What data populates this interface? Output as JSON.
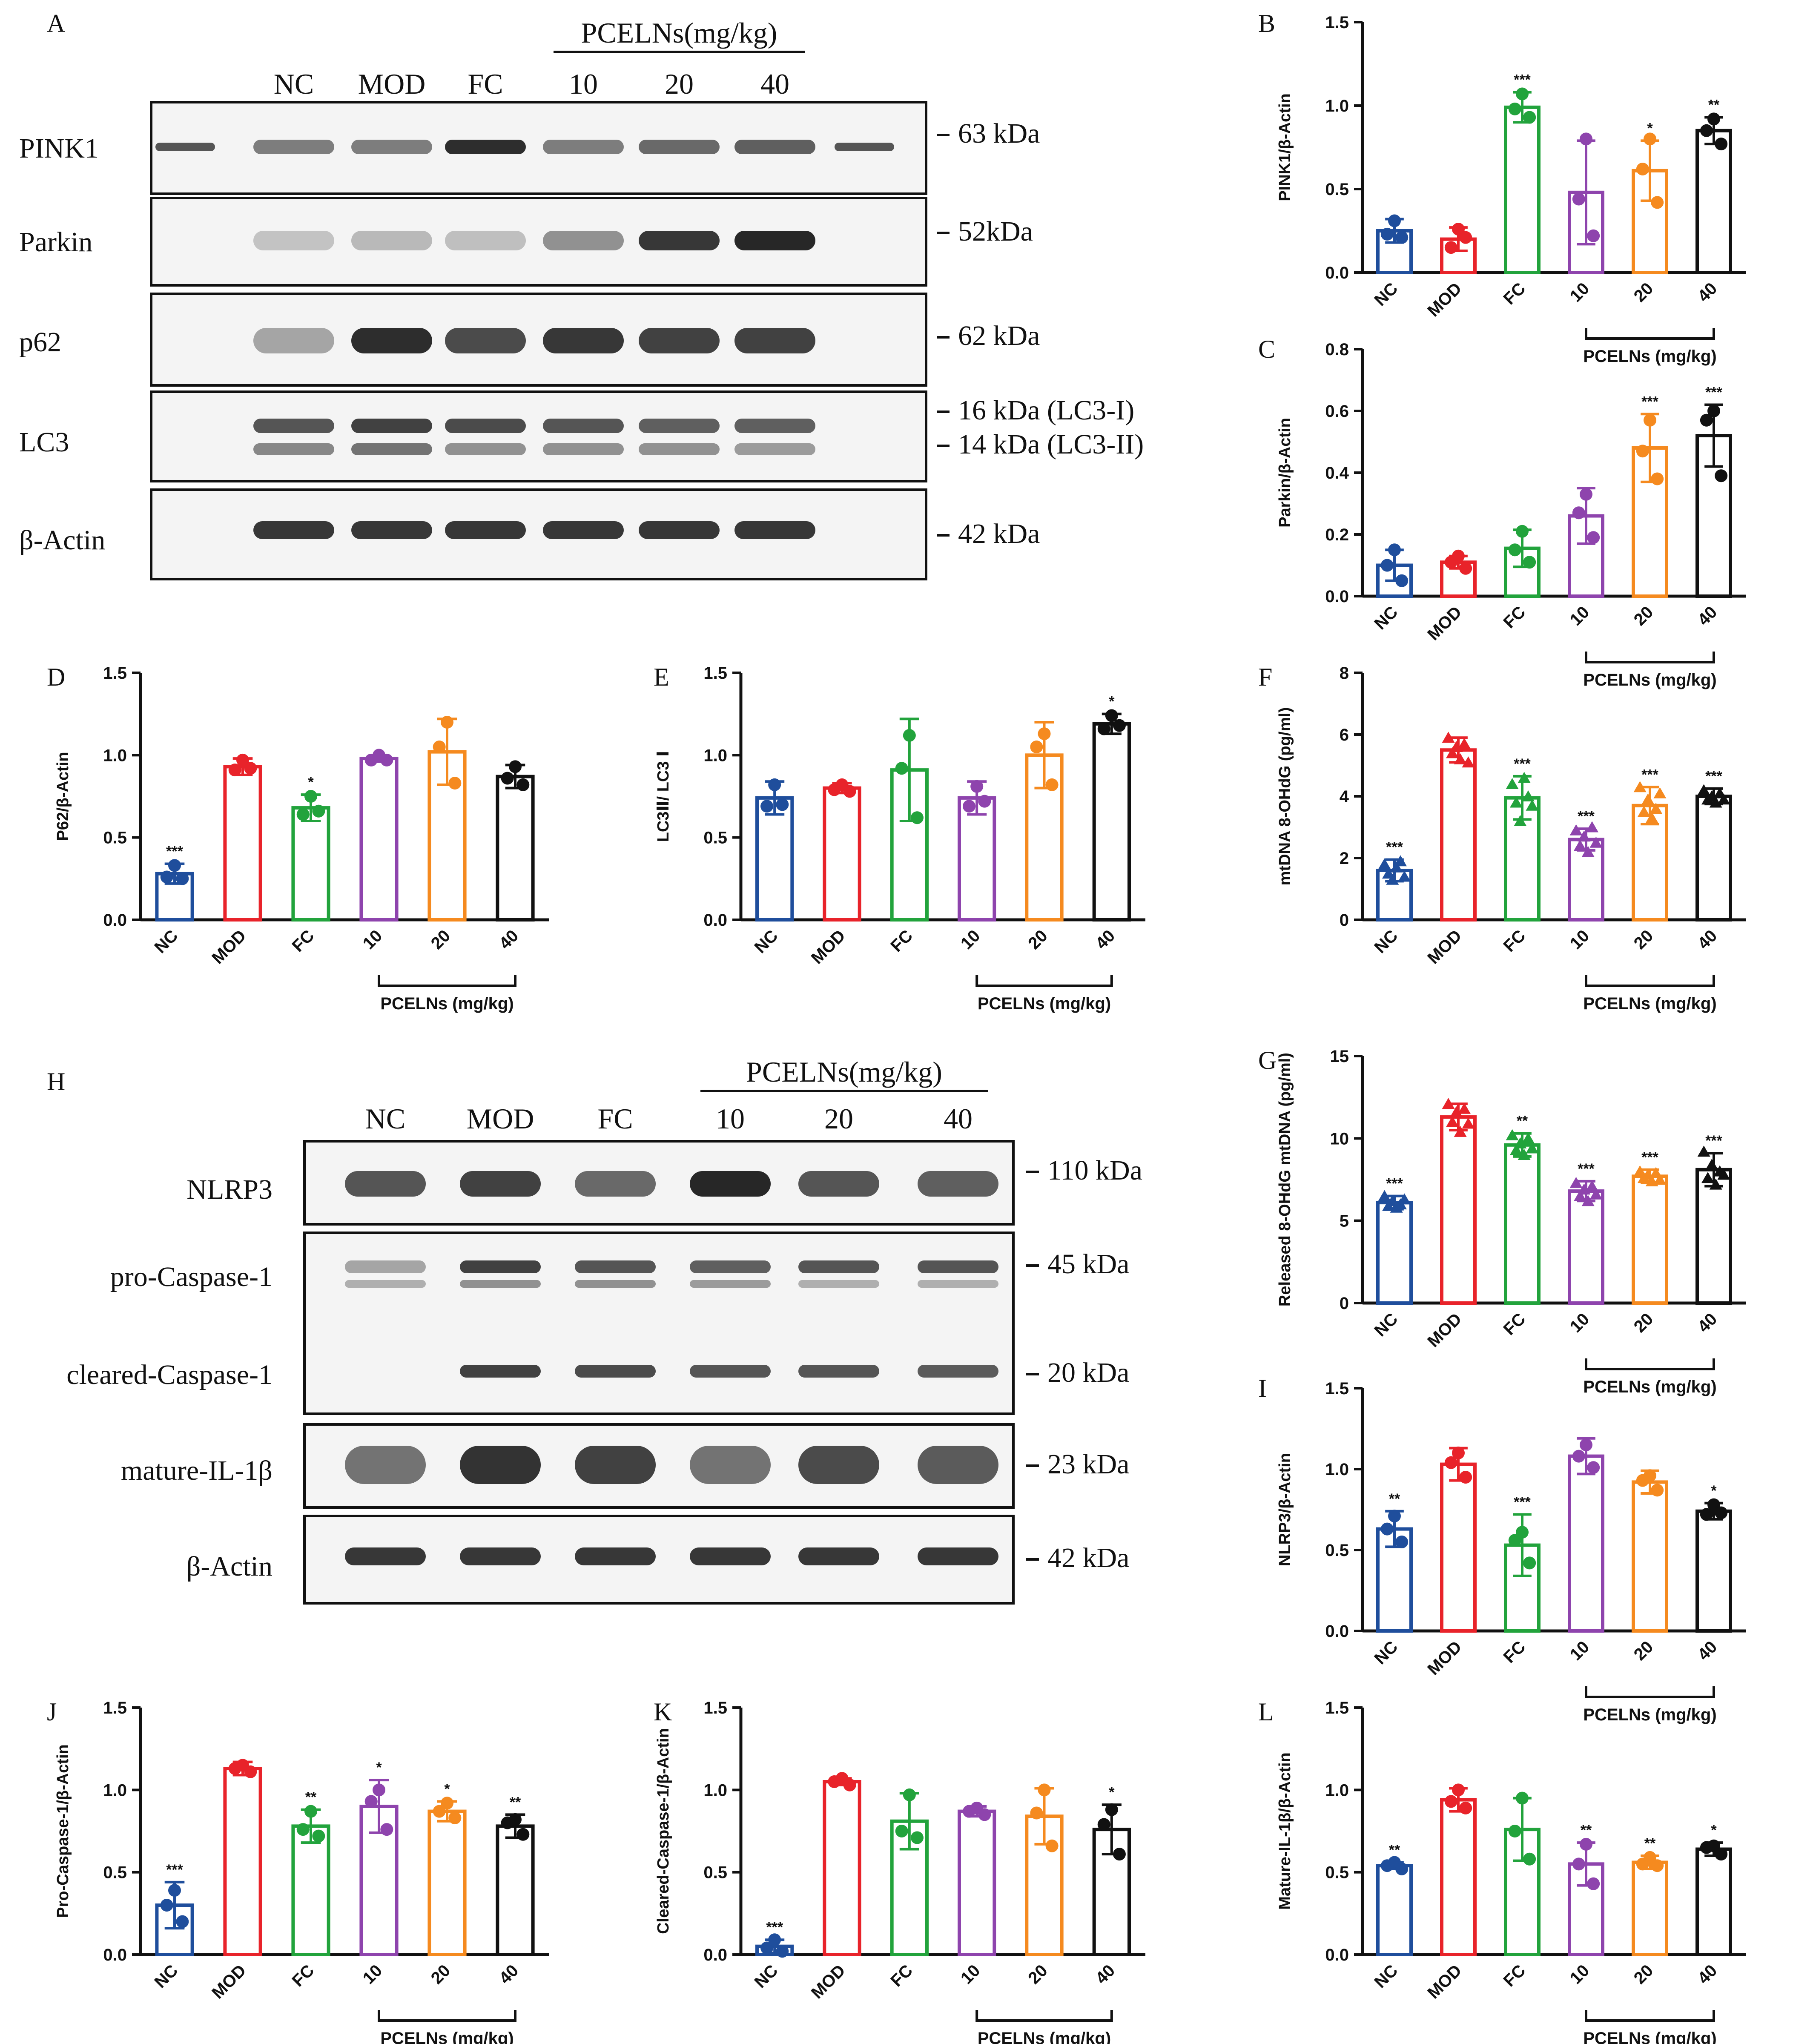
{
  "colors": {
    "NC": "#1f4e9c",
    "MOD": "#e8232a",
    "FC": "#22a33c",
    "P10": "#8e44ad",
    "P20": "#f58a1f",
    "P40": "#111111"
  },
  "group_labels": [
    "NC",
    "MOD",
    "FC",
    "10",
    "20",
    "40"
  ],
  "group_colors": [
    "#1f4e9c",
    "#e8232a",
    "#22a33c",
    "#8e44ad",
    "#f58a1f",
    "#111111"
  ],
  "bracket_label": "PCELNs (mg/kg)",
  "blots": [
    {
      "panel": "A",
      "group_header": "PCELNs(mg/kg)",
      "lanes": [
        "NC",
        "MOD",
        "FC",
        "10",
        "20",
        "40"
      ],
      "rows": [
        {
          "label": "PINK1",
          "markers": [
            "63 kDa"
          ]
        },
        {
          "label": "Parkin",
          "markers": [
            "52kDa"
          ]
        },
        {
          "label": "p62",
          "markers": [
            "62 kDa"
          ]
        },
        {
          "label": "LC3",
          "markers": [
            "16 kDa (LC3-I)",
            "14 kDa (LC3-II)"
          ]
        },
        {
          "label": "β-Actin",
          "markers": [
            "42 kDa"
          ]
        }
      ]
    },
    {
      "panel": "H",
      "group_header": "PCELNs(mg/kg)",
      "lanes": [
        "NC",
        "MOD",
        "FC",
        "10",
        "20",
        "40"
      ],
      "rows": [
        {
          "label": "NLRP3",
          "markers": [
            "110 kDa"
          ]
        },
        {
          "label": "pro-Caspase-1",
          "markers": [
            "45 kDa"
          ]
        },
        {
          "label": "cleared-Caspase-1",
          "markers": [
            "20 kDa"
          ]
        },
        {
          "label": "mature-IL-1β",
          "markers": [
            "23 kDa"
          ]
        },
        {
          "label": "β-Actin",
          "markers": [
            "42 kDa"
          ]
        }
      ]
    }
  ],
  "chart_data": [
    {
      "panel": "B",
      "type": "bar",
      "ylabel": "PINK1/β-Actin",
      "ylim": [
        0,
        1.5
      ],
      "yticks": [
        "0.0",
        "0.5",
        "1.0",
        "1.5"
      ],
      "categories": [
        "NC",
        "MOD",
        "FC",
        "10",
        "20",
        "40"
      ],
      "values": [
        0.25,
        0.2,
        0.99,
        0.48,
        0.61,
        0.85
      ],
      "sd": [
        0.07,
        0.07,
        0.09,
        0.31,
        0.18,
        0.08
      ],
      "points": [
        [
          0.31,
          0.23,
          0.21
        ],
        [
          0.26,
          0.15,
          0.21
        ],
        [
          1.07,
          0.98,
          0.93
        ],
        [
          0.8,
          0.44,
          0.22
        ],
        [
          0.8,
          0.62,
          0.42
        ],
        [
          0.92,
          0.85,
          0.77
        ]
      ],
      "sig": [
        "",
        "",
        "***",
        "",
        "*",
        "**"
      ],
      "xlabel": "PCELNs (mg/kg)"
    },
    {
      "panel": "C",
      "type": "bar",
      "ylabel": "Parkin/β-Actin",
      "ylim": [
        0,
        0.8
      ],
      "yticks": [
        "0.0",
        "0.2",
        "0.4",
        "0.6",
        "0.8"
      ],
      "categories": [
        "NC",
        "MOD",
        "FC",
        "10",
        "20",
        "40"
      ],
      "values": [
        0.1,
        0.11,
        0.155,
        0.26,
        0.48,
        0.52
      ],
      "sd": [
        0.05,
        0.02,
        0.06,
        0.09,
        0.11,
        0.1
      ],
      "points": [
        [
          0.15,
          0.1,
          0.05
        ],
        [
          0.13,
          0.11,
          0.09
        ],
        [
          0.21,
          0.15,
          0.11
        ],
        [
          0.33,
          0.27,
          0.19
        ],
        [
          0.57,
          0.47,
          0.38
        ],
        [
          0.6,
          0.57,
          0.39
        ]
      ],
      "sig": [
        "",
        "",
        "",
        "",
        "***",
        "***"
      ],
      "xlabel": "PCELNs (mg/kg)"
    },
    {
      "panel": "D",
      "type": "bar",
      "ylabel": "P62/β-Actin",
      "ylim": [
        0,
        1.5
      ],
      "yticks": [
        "0.0",
        "0.5",
        "1.0",
        "1.5"
      ],
      "categories": [
        "NC",
        "MOD",
        "FC",
        "10",
        "20",
        "40"
      ],
      "values": [
        0.28,
        0.93,
        0.68,
        0.98,
        1.02,
        0.87
      ],
      "sd": [
        0.06,
        0.05,
        0.08,
        0.02,
        0.2,
        0.07
      ],
      "points": [
        [
          0.33,
          0.26,
          0.25
        ],
        [
          0.97,
          0.91,
          0.92
        ],
        [
          0.75,
          0.64,
          0.66
        ],
        [
          1.0,
          0.97,
          0.97
        ],
        [
          1.2,
          1.05,
          0.83
        ],
        [
          0.93,
          0.86,
          0.82
        ]
      ],
      "sig": [
        "***",
        "",
        "*",
        "",
        "",
        ""
      ],
      "xlabel": "PCELNs (mg/kg)"
    },
    {
      "panel": "E",
      "type": "bar",
      "ylabel": "LC3Ⅱ/ LC3 Ⅰ",
      "ylim": [
        0,
        1.5
      ],
      "yticks": [
        "0.0",
        "0.5",
        "1.0",
        "1.5"
      ],
      "categories": [
        "NC",
        "MOD",
        "FC",
        "10",
        "20",
        "40"
      ],
      "values": [
        0.74,
        0.8,
        0.91,
        0.74,
        1.0,
        1.19
      ],
      "sd": [
        0.1,
        0.03,
        0.31,
        0.1,
        0.2,
        0.06
      ],
      "points": [
        [
          0.82,
          0.69,
          0.7
        ],
        [
          0.82,
          0.79,
          0.78
        ],
        [
          1.12,
          0.92,
          0.62
        ],
        [
          0.81,
          0.69,
          0.72
        ],
        [
          1.13,
          1.05,
          0.82
        ],
        [
          1.24,
          1.16,
          1.18
        ]
      ],
      "sig": [
        "",
        "",
        "",
        "",
        "",
        "*"
      ],
      "xlabel": "PCELNs (mg/kg)"
    },
    {
      "panel": "F",
      "type": "bar",
      "ylabel": "mtDNA 8-OHdG (pg/ml)",
      "ylim": [
        0,
        8
      ],
      "yticks": [
        "0",
        "2",
        "4",
        "6",
        "8"
      ],
      "categories": [
        "NC",
        "MOD",
        "FC",
        "10",
        "20",
        "40"
      ],
      "values": [
        1.6,
        5.5,
        3.95,
        2.6,
        3.7,
        4.0
      ],
      "sd": [
        0.35,
        0.4,
        0.7,
        0.35,
        0.6,
        0.25
      ],
      "points": [
        [
          1.8,
          1.5,
          1.3,
          1.7,
          1.9,
          1.4
        ],
        [
          5.9,
          5.4,
          5.6,
          5.2,
          5.7,
          5.1
        ],
        [
          4.4,
          3.8,
          3.2,
          4.6,
          4.0,
          3.7
        ],
        [
          2.9,
          2.4,
          2.7,
          2.2,
          3.0,
          2.5
        ],
        [
          4.3,
          3.5,
          3.9,
          3.3,
          3.6,
          4.1
        ],
        [
          4.2,
          3.9,
          4.0,
          3.8,
          4.1,
          3.9
        ]
      ],
      "sig": [
        "***",
        "",
        "***",
        "***",
        "***",
        "***"
      ],
      "xlabel": "PCELNs (mg/kg)"
    },
    {
      "panel": "G",
      "type": "bar",
      "ylabel": "Released 8-OHdG mtDNA (pg/ml)",
      "ylim": [
        0,
        15
      ],
      "yticks": [
        "0",
        "5",
        "10",
        "15"
      ],
      "categories": [
        "NC",
        "MOD",
        "FC",
        "10",
        "20",
        "40"
      ],
      "values": [
        6.1,
        11.3,
        9.6,
        6.8,
        7.7,
        8.1
      ],
      "sd": [
        0.4,
        0.8,
        0.7,
        0.6,
        0.4,
        1.0
      ],
      "points": [
        [
          6.5,
          5.9,
          6.2,
          5.8,
          6.0,
          6.3
        ],
        [
          12.1,
          11.0,
          11.6,
          10.4,
          11.8,
          10.9
        ],
        [
          10.2,
          9.3,
          9.7,
          9.0,
          10.0,
          9.4
        ],
        [
          7.3,
          6.5,
          6.9,
          6.2,
          7.1,
          6.6
        ],
        [
          8.0,
          7.6,
          7.8,
          7.4,
          7.9,
          7.5
        ],
        [
          9.2,
          7.6,
          8.4,
          7.2,
          8.0,
          7.8
        ]
      ],
      "sig": [
        "***",
        "",
        "**",
        "***",
        "***",
        "***"
      ],
      "xlabel": "PCELNs (mg/kg)"
    },
    {
      "panel": "I",
      "type": "bar",
      "ylabel": "NLRP3/β-Actin",
      "ylim": [
        0,
        1.5
      ],
      "yticks": [
        "0.0",
        "0.5",
        "1.0",
        "1.5"
      ],
      "categories": [
        "NC",
        "MOD",
        "FC",
        "10",
        "20",
        "40"
      ],
      "values": [
        0.63,
        1.03,
        0.53,
        1.08,
        0.92,
        0.74
      ],
      "sd": [
        0.11,
        0.1,
        0.19,
        0.11,
        0.07,
        0.05
      ],
      "points": [
        [
          0.71,
          0.63,
          0.55
        ],
        [
          1.1,
          1.04,
          0.95
        ],
        [
          0.61,
          0.56,
          0.42
        ],
        [
          1.15,
          1.08,
          1.01
        ],
        [
          0.96,
          0.93,
          0.87
        ],
        [
          0.78,
          0.72,
          0.73
        ]
      ],
      "sig": [
        "**",
        "",
        "***",
        "",
        "",
        "*"
      ],
      "xlabel": "PCELNs (mg/kg)"
    },
    {
      "panel": "J",
      "type": "bar",
      "ylabel": "Pro-Caspase-1/β-Actin",
      "ylim": [
        0,
        1.5
      ],
      "yticks": [
        "0.0",
        "0.5",
        "1.0",
        "1.5"
      ],
      "categories": [
        "NC",
        "MOD",
        "FC",
        "10",
        "20",
        "40"
      ],
      "values": [
        0.3,
        1.13,
        0.78,
        0.9,
        0.87,
        0.78
      ],
      "sd": [
        0.14,
        0.04,
        0.1,
        0.16,
        0.06,
        0.07
      ],
      "points": [
        [
          0.39,
          0.3,
          0.2
        ],
        [
          1.15,
          1.13,
          1.11
        ],
        [
          0.87,
          0.76,
          0.72
        ],
        [
          1.0,
          0.93,
          0.76
        ],
        [
          0.92,
          0.87,
          0.83
        ],
        [
          0.82,
          0.8,
          0.73
        ]
      ],
      "sig": [
        "***",
        "",
        "**",
        "*",
        "*",
        "**"
      ],
      "xlabel": "PCELNs (mg/kg)"
    },
    {
      "panel": "K",
      "type": "bar",
      "ylabel": "Cleared-Caspase-1/β-Actin",
      "ylim": [
        0,
        1.5
      ],
      "yticks": [
        "0.0",
        "0.5",
        "1.0",
        "1.5"
      ],
      "categories": [
        "NC",
        "MOD",
        "FC",
        "10",
        "20",
        "40"
      ],
      "values": [
        0.05,
        1.05,
        0.81,
        0.87,
        0.84,
        0.76
      ],
      "sd": [
        0.04,
        0.02,
        0.17,
        0.03,
        0.17,
        0.15
      ],
      "points": [
        [
          0.09,
          0.04,
          0.02
        ],
        [
          1.07,
          1.05,
          1.03
        ],
        [
          0.97,
          0.75,
          0.71
        ],
        [
          0.89,
          0.87,
          0.85
        ],
        [
          1.0,
          0.86,
          0.66
        ],
        [
          0.88,
          0.79,
          0.61
        ]
      ],
      "sig": [
        "***",
        "",
        "",
        "",
        "",
        "*"
      ],
      "xlabel": "PCELNs (mg/kg)"
    },
    {
      "panel": "L",
      "type": "bar",
      "ylabel": "Mature-IL-1β/β-Actin",
      "ylim": [
        0,
        1.5
      ],
      "yticks": [
        "0.0",
        "0.5",
        "1.0",
        "1.5"
      ],
      "categories": [
        "NC",
        "MOD",
        "FC",
        "10",
        "20",
        "40"
      ],
      "values": [
        0.54,
        0.94,
        0.76,
        0.55,
        0.56,
        0.64
      ],
      "sd": [
        0.02,
        0.07,
        0.19,
        0.13,
        0.04,
        0.04
      ],
      "points": [
        [
          0.56,
          0.54,
          0.52
        ],
        [
          1.0,
          0.93,
          0.89
        ],
        [
          0.95,
          0.75,
          0.58
        ],
        [
          0.67,
          0.55,
          0.43
        ],
        [
          0.59,
          0.55,
          0.54
        ],
        [
          0.66,
          0.65,
          0.61
        ]
      ],
      "sig": [
        "**",
        "",
        "",
        "**",
        "**",
        "*"
      ],
      "xlabel": "PCELNs (mg/kg)"
    }
  ]
}
